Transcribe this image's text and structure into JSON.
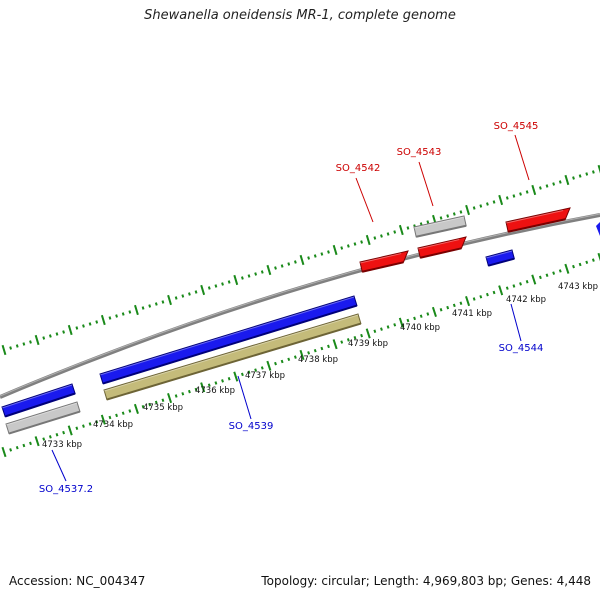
{
  "title": "Shewanella oneidensis MR-1, complete genome",
  "footer": {
    "accession": "Accession: NC_004347",
    "summary": "Topology: circular; Length: 4,969,803 bp; Genes: 4,448"
  },
  "ruler": {
    "labels": [
      "4733 kbp",
      "4734 kbp",
      "4735 kbp",
      "4736 kbp",
      "4737 kbp",
      "4738 kbp",
      "4739 kbp",
      "4740 kbp",
      "4741 kbp",
      "4742 kbp",
      "4743 kbp"
    ]
  },
  "genes": [
    {
      "name": "SO_4537.2",
      "color": "#0000cc"
    },
    {
      "name": "SO_4539",
      "color": "#0000cc"
    },
    {
      "name": "SO_4542",
      "color": "#cc0000"
    },
    {
      "name": "SO_4543",
      "color": "#cc0000"
    },
    {
      "name": "SO_4544",
      "color": "#0000cc"
    },
    {
      "name": "SO_4545",
      "color": "#cc0000"
    }
  ],
  "colors": {
    "backbone": "#808080",
    "tick": "#1a8a1a",
    "gene_blue": "#1a1aee",
    "gene_red": "#ee1111",
    "gene_grey": "#c8c8c8",
    "gene_olive": "#c4bb7a",
    "label_blue": "#0000cc",
    "label_red": "#cc0000"
  }
}
